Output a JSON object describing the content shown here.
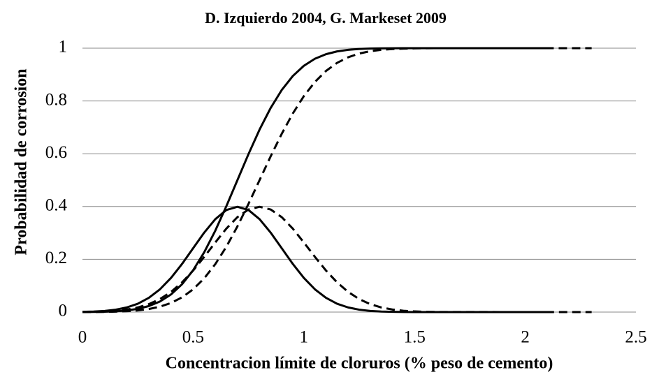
{
  "chart_data": {
    "type": "line",
    "title": "D. Izquierdo 2004, G. Markeset 2009",
    "x_label": "Concentracion límite de cloruros (% peso de cemento)",
    "y_label": "Probabilidad de corrosion",
    "xlim": [
      0,
      2.5
    ],
    "xticks": [
      0,
      0.5,
      1,
      1.5,
      2,
      2.5
    ],
    "ylim": [
      0,
      1
    ],
    "yticks": [
      0,
      0.2,
      0.4,
      0.6,
      0.8,
      1
    ],
    "grid": true,
    "series": [
      {
        "color": "#000000",
        "style": "solid",
        "x": [
          0,
          0.05,
          0.1,
          0.15,
          0.2,
          0.25,
          0.3,
          0.35,
          0.4,
          0.45,
          0.5,
          0.55,
          0.6,
          0.65,
          0.7,
          0.75,
          0.8,
          0.85,
          0.9,
          0.95,
          1.0,
          1.05,
          1.1,
          1.15,
          1.2,
          1.25,
          1.3,
          1.35,
          1.4,
          1.45,
          1.5,
          1.75,
          2.1
        ],
        "values": [
          0.0002,
          0.0006,
          0.0013,
          0.003,
          0.0062,
          0.0122,
          0.0228,
          0.0401,
          0.0668,
          0.1056,
          0.1587,
          0.2266,
          0.3085,
          0.4013,
          0.5,
          0.5987,
          0.6915,
          0.7734,
          0.8413,
          0.8944,
          0.9332,
          0.9599,
          0.9772,
          0.9878,
          0.9938,
          0.997,
          0.9987,
          0.9994,
          0.9998,
          0.9999,
          1,
          1,
          1
        ]
      },
      {
        "color": "#000000",
        "style": "solid",
        "x": [
          0,
          0.05,
          0.1,
          0.15,
          0.2,
          0.25,
          0.3,
          0.35,
          0.4,
          0.45,
          0.5,
          0.55,
          0.6,
          0.65,
          0.7,
          0.75,
          0.8,
          0.85,
          0.9,
          0.95,
          1.0,
          1.05,
          1.1,
          1.15,
          1.2,
          1.25,
          1.3,
          1.35,
          1.4,
          1.45,
          1.5,
          1.75,
          2.1
        ],
        "values": [
          0.0009,
          0.002,
          0.0044,
          0.0091,
          0.0175,
          0.0317,
          0.054,
          0.0863,
          0.1295,
          0.1826,
          0.242,
          0.3011,
          0.3521,
          0.3867,
          0.3989,
          0.3867,
          0.3521,
          0.3011,
          0.242,
          0.1826,
          0.1295,
          0.0863,
          0.054,
          0.0317,
          0.0175,
          0.0091,
          0.0044,
          0.002,
          0.0009,
          0.0004,
          0.0001,
          0,
          0
        ]
      },
      {
        "color": "#000000",
        "style": "dashed",
        "x": [
          0,
          0.05,
          0.1,
          0.15,
          0.2,
          0.25,
          0.3,
          0.35,
          0.4,
          0.45,
          0.5,
          0.55,
          0.6,
          0.65,
          0.7,
          0.75,
          0.8,
          0.85,
          0.9,
          0.95,
          1.0,
          1.05,
          1.1,
          1.15,
          1.2,
          1.25,
          1.3,
          1.35,
          1.4,
          1.45,
          1.5,
          1.55,
          1.6,
          2.0,
          2.3
        ],
        "values": [
          0.0001,
          0.0003,
          0.0007,
          0.0016,
          0.0032,
          0.0062,
          0.0115,
          0.0204,
          0.0345,
          0.0558,
          0.0863,
          0.1279,
          0.1817,
          0.2477,
          0.3247,
          0.4101,
          0.5,
          0.5899,
          0.6753,
          0.7523,
          0.8183,
          0.8721,
          0.9137,
          0.9442,
          0.9655,
          0.9796,
          0.9885,
          0.9938,
          0.9968,
          0.9984,
          0.9993,
          0.9997,
          0.9999,
          1,
          1
        ]
      },
      {
        "color": "#000000",
        "style": "dashed",
        "x": [
          0,
          0.05,
          0.1,
          0.15,
          0.2,
          0.25,
          0.3,
          0.35,
          0.4,
          0.45,
          0.5,
          0.55,
          0.6,
          0.65,
          0.7,
          0.75,
          0.8,
          0.85,
          0.9,
          0.95,
          1.0,
          1.05,
          1.1,
          1.15,
          1.2,
          1.25,
          1.3,
          1.35,
          1.4,
          1.45,
          1.5,
          1.55,
          1.6,
          2.0,
          2.3
        ],
        "values": [
          0.0005,
          0.0012,
          0.0025,
          0.0051,
          0.0097,
          0.0175,
          0.0301,
          0.0492,
          0.0765,
          0.1126,
          0.1574,
          0.2093,
          0.2637,
          0.3163,
          0.3598,
          0.3888,
          0.3989,
          0.3888,
          0.3598,
          0.3163,
          0.2637,
          0.2093,
          0.1574,
          0.1126,
          0.0765,
          0.0492,
          0.0301,
          0.0175,
          0.0097,
          0.0051,
          0.0025,
          0.0012,
          0.0005,
          0,
          0
        ]
      }
    ]
  }
}
